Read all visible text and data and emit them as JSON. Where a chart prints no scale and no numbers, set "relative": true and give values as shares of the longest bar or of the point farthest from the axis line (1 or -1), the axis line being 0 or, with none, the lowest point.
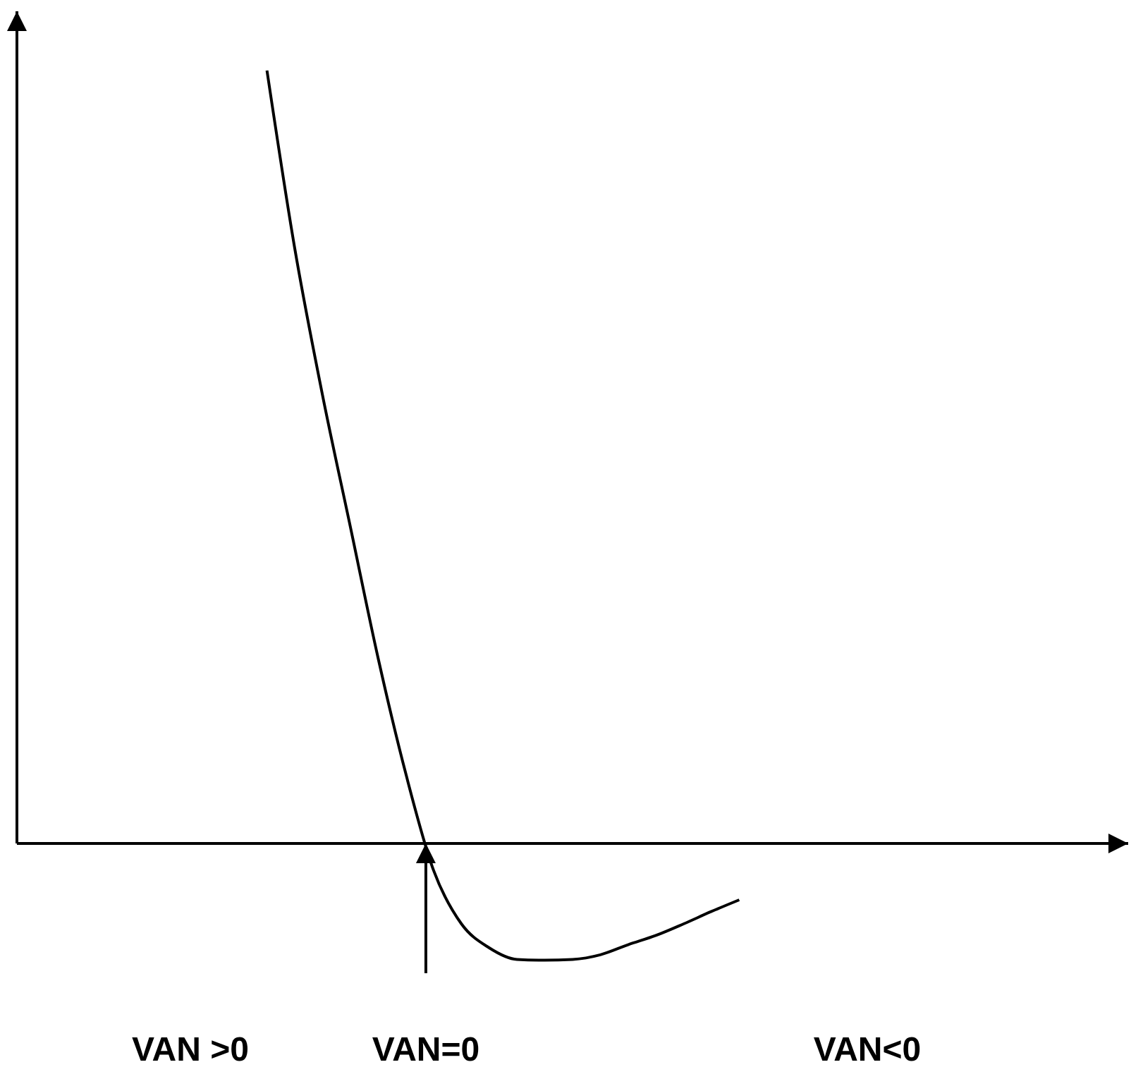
{
  "chart_data": {
    "type": "line",
    "relative": true,
    "color": "#000000",
    "marker": "none",
    "categories": [
      null,
      null,
      null,
      null,
      null,
      null,
      null,
      null,
      null,
      null,
      null,
      null,
      null,
      null,
      null,
      null,
      null,
      null,
      null,
      null,
      null,
      null,
      null,
      null,
      null,
      null,
      null,
      null,
      null,
      null,
      null,
      null,
      null,
      null,
      null,
      null,
      null,
      null,
      null,
      null,
      null
    ],
    "values": [
      null,
      null,
      null,
      null,
      null,
      null,
      null,
      null,
      null,
      1,
      0.77,
      0.58,
      0.41,
      0.24,
      0.09,
      -0.035,
      -0.104,
      -0.135,
      -0.15,
      -0.151,
      -0.15,
      -0.144,
      -0.131,
      -0.119,
      -0.104,
      -0.088,
      -0.073,
      null,
      null,
      null,
      null,
      null,
      null,
      null,
      null,
      null,
      null,
      null,
      null,
      null,
      null
    ],
    "annotations": [
      "VAN >0",
      "VAN=0",
      "VAN<0"
    ]
  }
}
